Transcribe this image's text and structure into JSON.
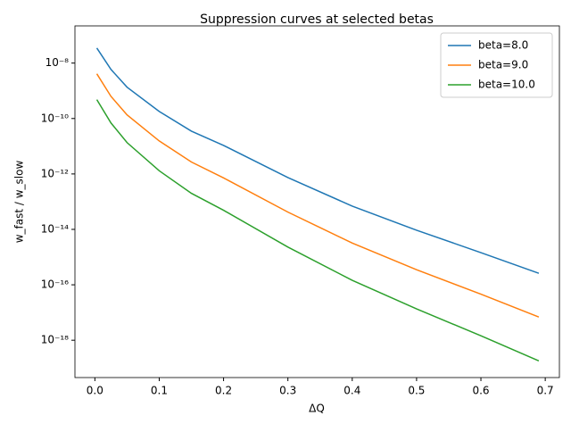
{
  "chart_data": {
    "type": "line",
    "title": "Suppression curves at selected betas",
    "x_label": "ΔQ",
    "y_label": "w_fast / w_slow",
    "x": [
      0.003,
      0.025,
      0.05,
      0.1,
      0.15,
      0.2,
      0.3,
      0.4,
      0.5,
      0.6,
      0.69
    ],
    "series": [
      {
        "name": "beta=8.0",
        "color": "#1f77b4",
        "values": [
          3.5e-08,
          5.9e-09,
          1.35e-09,
          1.8e-10,
          3.5e-11,
          1.07e-11,
          7.4e-13,
          6.9e-14,
          9.3e-15,
          1.45e-15,
          2.6e-16
        ]
      },
      {
        "name": "beta=9.0",
        "color": "#ff7f0e",
        "values": [
          4.1e-09,
          6.3e-10,
          1.35e-10,
          1.55e-11,
          2.7e-12,
          7.2e-13,
          4.2e-14,
          3.2e-15,
          3.5e-16,
          4.6e-17,
          6.9e-18
        ]
      },
      {
        "name": "beta=10.0",
        "color": "#2ca02c",
        "values": [
          4.8e-10,
          6.9e-11,
          1.35e-11,
          1.3e-12,
          2e-13,
          4.9e-14,
          2.3e-15,
          1.45e-16,
          1.35e-17,
          1.45e-18,
          1.8e-19
        ]
      }
    ],
    "xlim": [
      -0.031,
      0.722
    ],
    "xticks": [
      {
        "value": 0,
        "label": "0.0"
      },
      0.1,
      0.2,
      0.3,
      0.4,
      0.5,
      0.6,
      0.7
    ],
    "ylim": [
      4.5e-20,
      2.2e-07
    ],
    "log_y": true,
    "yticks": [
      {
        "value": 1e-08,
        "label": "10⁻⁸"
      },
      {
        "value": 1e-10,
        "label": "10⁻¹⁰"
      },
      {
        "value": 1e-12,
        "label": "10⁻¹²"
      },
      {
        "value": 1e-14,
        "label": "10⁻¹⁴"
      },
      {
        "value": 1e-16,
        "label": "10⁻¹⁶"
      },
      {
        "value": 1e-18,
        "label": "10⁻¹⁸"
      }
    ],
    "legend": "upper right",
    "grid": false
  }
}
